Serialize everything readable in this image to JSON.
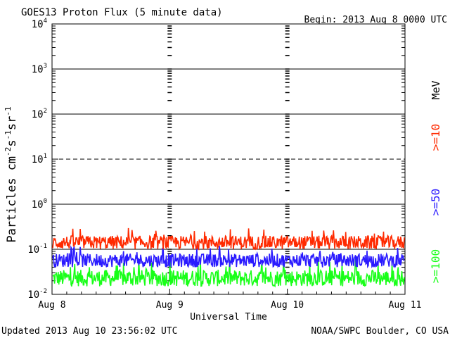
{
  "chart_data": {
    "type": "line",
    "title": "GOES13 Proton Flux (5 minute data)",
    "begin_label": "Begin: 2013 Aug 8 0000 UTC",
    "xlabel": "Universal Time",
    "ylabel_main": "Particles cm",
    "ylabel_sup1": "-2",
    "ylabel_mid1": "s",
    "ylabel_sup2": "-1",
    "ylabel_mid2": "sr",
    "ylabel_sup3": "-1",
    "x_ticks": [
      "Aug 8",
      "Aug 9",
      "Aug 10",
      "Aug 11"
    ],
    "y_scale": "log",
    "ylim": [
      0.01,
      10000
    ],
    "y_ticks": [
      {
        "base": "10",
        "exp": "-2"
      },
      {
        "base": "10",
        "exp": "-1"
      },
      {
        "base": "10",
        "exp": "0"
      },
      {
        "base": "10",
        "exp": "1"
      },
      {
        "base": "10",
        "exp": "2"
      },
      {
        "base": "10",
        "exp": "3"
      },
      {
        "base": "10",
        "exp": "4"
      }
    ],
    "threshold_line": 10,
    "unit_label": "MeV",
    "series": [
      {
        "name": ">=10",
        "color": "#ff2a00",
        "typical_min": 0.1,
        "typical_max": 0.2,
        "peak": 0.3
      },
      {
        "name": ">=50",
        "color": "#2a1aff",
        "typical_min": 0.04,
        "typical_max": 0.08,
        "peak": 0.12
      },
      {
        "name": ">=100",
        "color": "#19ff19",
        "typical_min": 0.015,
        "typical_max": 0.035,
        "peak": 0.06
      }
    ],
    "grid": true
  },
  "footer": {
    "updated": "Updated 2013 Aug 10 23:56:02 UTC",
    "credit": "NOAA/SWPC Boulder, CO USA"
  }
}
